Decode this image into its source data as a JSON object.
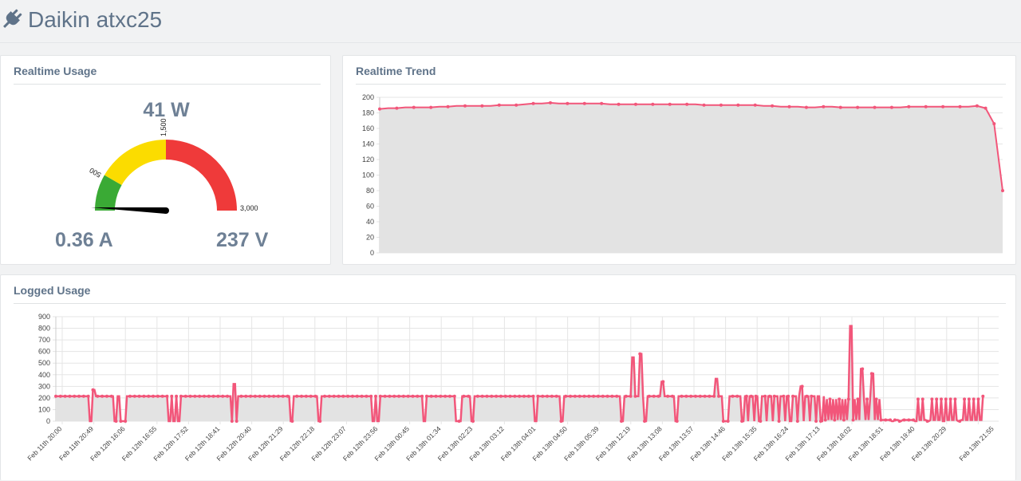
{
  "header": {
    "title": "Daikin atxc25",
    "icon": "plug-icon"
  },
  "realtime_usage": {
    "title": "Realtime Usage",
    "power": "41 W",
    "current": "0.36 A",
    "voltage": "237 V",
    "gauge": {
      "min": 0,
      "max": 3000,
      "value": 41,
      "bands": [
        {
          "from": 0,
          "to": 500,
          "color": "#3aaa35"
        },
        {
          "from": 500,
          "to": 1500,
          "color": "#fbdc00"
        },
        {
          "from": 1500,
          "to": 3000,
          "color": "#ef3a3a"
        }
      ],
      "labels": [
        "500",
        "1,500",
        "3,000"
      ]
    }
  },
  "realtime_trend": {
    "title": "Realtime Trend",
    "chart_data": {
      "type": "area",
      "ylim": [
        0,
        200
      ],
      "yticks": [
        "0",
        "20",
        "40",
        "60",
        "80",
        "100",
        "120",
        "140",
        "160",
        "180",
        "200"
      ],
      "color": "#f2567a",
      "fill": "#e3e3e3",
      "grid": true,
      "values": [
        185,
        186,
        186,
        187,
        187,
        187,
        187,
        188,
        188,
        189,
        189,
        189,
        189,
        189,
        190,
        190,
        190,
        191,
        192,
        192,
        193,
        192,
        192,
        192,
        192,
        192,
        192,
        191,
        191,
        191,
        191,
        191,
        191,
        191,
        191,
        191,
        191,
        191,
        190,
        190,
        190,
        190,
        190,
        190,
        190,
        189,
        189,
        188,
        188,
        188,
        187,
        187,
        188,
        188,
        187,
        187,
        187,
        187,
        187,
        187,
        187,
        187,
        188,
        188,
        188,
        188,
        188,
        188,
        188,
        188,
        189,
        186,
        166,
        80
      ]
    }
  },
  "logged_usage": {
    "title": "Logged Usage",
    "chart_data": {
      "type": "line",
      "ylim": [
        0,
        900
      ],
      "yticks": [
        "0",
        "100",
        "200",
        "300",
        "400",
        "500",
        "600",
        "700",
        "800",
        "900"
      ],
      "color": "#f2567a",
      "fill": "#e3e3e3",
      "grid": true,
      "categories": [
        "Feb 11th 20:00",
        "Feb 11th 20:49",
        "Feb 12th 16:06",
        "Feb 12th 16:55",
        "Feb 12th 17:52",
        "Feb 12th 18:41",
        "Feb 12th 20:40",
        "Feb 12th 21:29",
        "Feb 12th 22:18",
        "Feb 12th 23:07",
        "Feb 12th 23:56",
        "Feb 13th 00:45",
        "Feb 13th 01:34",
        "Feb 13th 02:23",
        "Feb 13th 03:12",
        "Feb 13th 04:01",
        "Feb 13th 04:50",
        "Feb 13th 05:39",
        "Feb 13th 12:19",
        "Feb 13th 13:08",
        "Feb 13th 13:57",
        "Feb 13th 14:46",
        "Feb 13th 15:35",
        "Feb 13th 16:24",
        "Feb 13th 17:13",
        "Feb 13th 18:02",
        "Feb 13th 18:51",
        "Feb 13th 19:40",
        "Feb 13th 20:29",
        "Feb 13th 21:55"
      ],
      "baseline": 215,
      "drops": [
        0.045,
        0.075,
        0.083,
        0.087,
        0.145,
        0.15,
        0.157,
        0.225,
        0.23,
        0.3,
        0.335,
        0.405,
        0.41,
        0.47,
        0.51,
        0.515,
        0.53,
        0.61,
        0.645,
        0.72,
        0.75,
        0.79,
        0.85,
        0.855,
        0.875,
        0.895,
        0.935,
        0.975,
        1.065,
        1.075,
        1.095,
        1.11,
        1.13,
        1.15
      ],
      "peaks": [
        [
          0.048,
          270
        ],
        [
          0.228,
          320
        ],
        [
          0.735,
          550
        ],
        [
          0.745,
          580
        ],
        [
          0.772,
          340
        ],
        [
          0.84,
          365
        ],
        [
          0.948,
          300
        ],
        [
          1.012,
          820
        ],
        [
          1.025,
          450
        ],
        [
          1.04,
          410
        ]
      ],
      "dense_start": 0.978,
      "dense_end": 1.18
    }
  }
}
